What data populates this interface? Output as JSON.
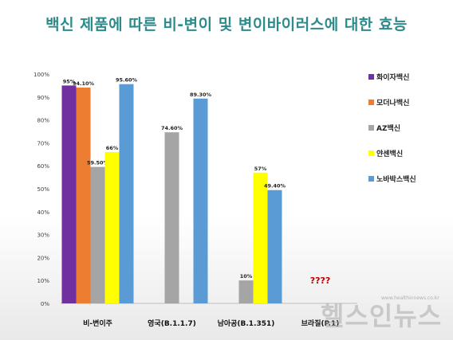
{
  "title": "백신 제품에 따른 비-변이 및 변이바이러스에 대한 효능",
  "chart_data": {
    "type": "bar",
    "categories": [
      "비-변이주",
      "영국(B.1.1.7)",
      "남아공(B.1.351)",
      "브라질(P.1)"
    ],
    "ylim": [
      0,
      100
    ],
    "yticks": [
      "0%",
      "10%",
      "20%",
      "30%",
      "40%",
      "50%",
      "60%",
      "70%",
      "80%",
      "90%",
      "100%"
    ],
    "grid": false,
    "legend_position": "right",
    "series": [
      {
        "name": "화이자백신",
        "color": "#7030a0",
        "values": [
          95,
          null,
          null,
          null
        ],
        "labels": [
          "95%",
          null,
          null,
          null
        ]
      },
      {
        "name": "모더나백신",
        "color": "#ed7d31",
        "values": [
          94.1,
          null,
          null,
          null
        ],
        "labels": [
          "94.10%",
          null,
          null,
          null
        ]
      },
      {
        "name": "AZ백신",
        "color": "#a5a5a5",
        "values": [
          59.5,
          74.6,
          10,
          null
        ],
        "labels": [
          "59.50%",
          "74.60%",
          "10%",
          null
        ]
      },
      {
        "name": "얀센백신",
        "color": "#ffff00",
        "values": [
          66,
          null,
          57,
          null
        ],
        "labels": [
          "66%",
          null,
          "57%",
          null
        ]
      },
      {
        "name": "노바박스백신",
        "color": "#5b9bd5",
        "values": [
          95.6,
          89.3,
          49.4,
          null
        ],
        "labels": [
          "95.60%",
          "89.30%",
          "49.40%",
          null
        ]
      }
    ],
    "annotations": [
      {
        "category": "브라질(P.1)",
        "text": "????",
        "color": "#c00000"
      }
    ]
  },
  "watermark": {
    "text": "헬스인뉴스",
    "url": "www.healthinnews.co.kr"
  }
}
